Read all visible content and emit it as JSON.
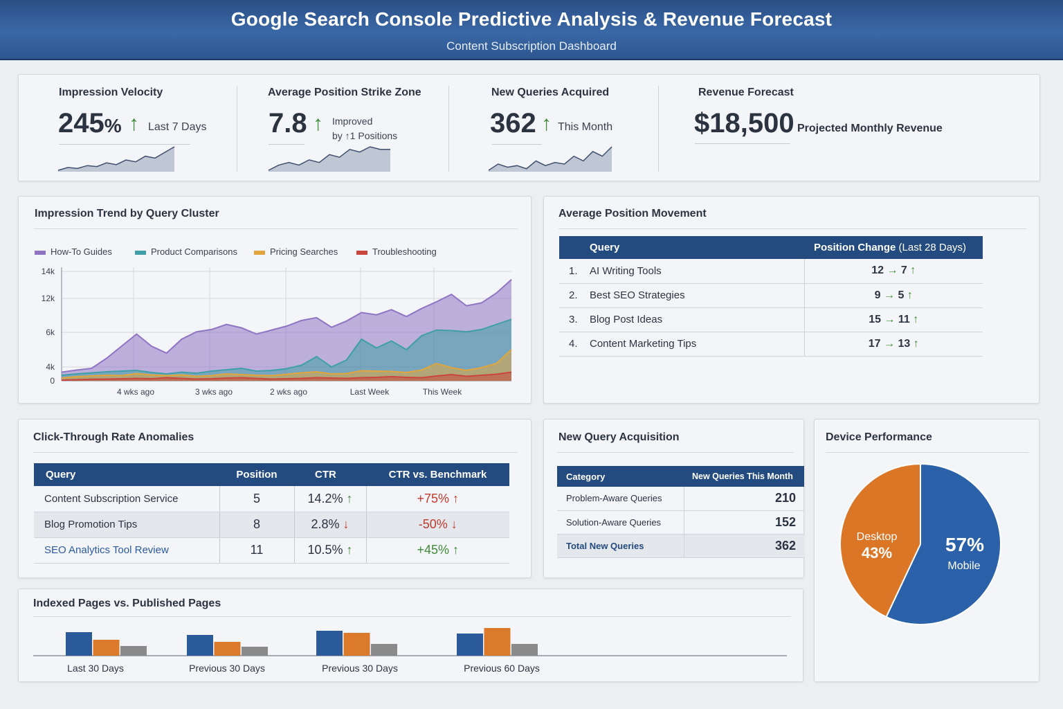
{
  "header": {
    "title": "Google Search Console Predictive Analysis & Revenue Forecast",
    "subtitle": "Content Subscription Dashboard"
  },
  "kpis": {
    "impression_velocity": {
      "label": "Impression Velocity",
      "value": "245",
      "unit": "%",
      "note": "Last 7 Days",
      "spark": [
        3,
        6,
        5,
        8,
        7,
        11,
        9,
        14,
        12,
        18,
        16,
        22,
        28
      ]
    },
    "avg_position": {
      "label": "Average Position Strike Zone",
      "value": "7.8",
      "note_line1": "Improved",
      "note_line2": "by ↑1 Positions",
      "spark": [
        4,
        6,
        7,
        6,
        8,
        7,
        10,
        9,
        12,
        11,
        13,
        12,
        12
      ]
    },
    "new_queries": {
      "label": "New Queries Acquired",
      "value": "362",
      "note": "This Month",
      "spark": [
        3,
        7,
        5,
        6,
        4,
        9,
        6,
        8,
        7,
        12,
        9,
        15,
        12,
        18
      ]
    },
    "revenue": {
      "label": "Revenue Forecast",
      "value": "$18,500",
      "note": "Projected Monthly Revenue"
    }
  },
  "impression_trend": {
    "title": "Impression Trend by Query Cluster",
    "legend": [
      {
        "name": "How-To Guides",
        "color": "#8f74c4"
      },
      {
        "name": "Product Comparisons",
        "color": "#3f9fa6"
      },
      {
        "name": "Pricing Searches",
        "color": "#e0a53c"
      },
      {
        "name": "Troubleshooting",
        "color": "#c9453d"
      }
    ]
  },
  "chart_data": {
    "type": "area",
    "title": "Impression Trend by Query Cluster",
    "x": [
      0,
      1,
      2,
      3,
      4,
      5,
      6,
      7,
      8,
      9,
      10,
      11,
      12,
      13,
      14,
      15,
      16,
      17,
      18,
      19,
      20,
      21,
      22,
      23,
      24,
      25,
      26,
      27,
      28,
      29,
      30
    ],
    "x_tick_labels": [
      "4 wks ago",
      "3 wks ago",
      "2 wks ago",
      "Last Week",
      "This Week"
    ],
    "y_tick_labels": [
      "0",
      "4k",
      "6k",
      "12k",
      "14k"
    ],
    "ylim": [
      0,
      14000
    ],
    "grid": true,
    "legend_position": "top-left",
    "series": [
      {
        "name": "Troubleshooting",
        "color": "#c9453d",
        "values": [
          200,
          300,
          450,
          500,
          600,
          700,
          600,
          900,
          700,
          500,
          600,
          800,
          900,
          700,
          500,
          600,
          700,
          900,
          800,
          700,
          900,
          1000,
          1200,
          1000,
          900,
          1400,
          1800,
          1300,
          1600,
          1900,
          2500
        ]
      },
      {
        "name": "Pricing Searches",
        "color": "#e0a53c",
        "values": [
          800,
          1200,
          1400,
          1600,
          1500,
          2100,
          1700,
          1500,
          1700,
          1300,
          1500,
          2000,
          1800,
          1600,
          1500,
          1900,
          2300,
          2600,
          2000,
          2100,
          2900,
          2800,
          2700,
          2400,
          3100,
          4200,
          3800,
          3000,
          3800,
          4200,
          5000
        ]
      },
      {
        "name": "Product Comparisons",
        "color": "#3f9fa6",
        "values": [
          1600,
          2000,
          2300,
          2600,
          2800,
          3000,
          2400,
          2000,
          2500,
          2200,
          2800,
          3200,
          3600,
          2800,
          3000,
          3500,
          4100,
          4600,
          4000,
          4400,
          5600,
          5100,
          5500,
          5000,
          5800,
          6400,
          6300,
          6100,
          6500,
          7400,
          8300
        ]
      },
      {
        "name": "How-To Guides",
        "color": "#8f74c4",
        "values": [
          2500,
          3100,
          3600,
          4500,
          5200,
          5900,
          5200,
          4800,
          5600,
          6100,
          6500,
          7400,
          6800,
          5900,
          6400,
          7100,
          8100,
          8600,
          6900,
          8000,
          9500,
          9100,
          10000,
          8800,
          10200,
          11400,
          12300,
          10700,
          11200,
          12400,
          13400
        ]
      }
    ]
  },
  "position_movement": {
    "title": "Average Position Movement",
    "col_query": "Query",
    "col_change": "Position Change",
    "col_change_sub": "(Last 28 Days)",
    "rows": [
      {
        "idx": "1.",
        "query": "AI Writing Tools",
        "from": "12",
        "to": "7"
      },
      {
        "idx": "2.",
        "query": "Best SEO Strategies",
        "from": "9",
        "to": "5"
      },
      {
        "idx": "3.",
        "query": "Blog Post Ideas",
        "from": "15",
        "to": "11"
      },
      {
        "idx": "4.",
        "query": "Content Marketing Tips",
        "from": "17",
        "to": "13"
      }
    ]
  },
  "ctr": {
    "title": "Click-Through Rate Anomalies",
    "columns": [
      "Query",
      "Position",
      "CTR",
      "CTR vs. Benchmark"
    ],
    "rows": [
      {
        "query": "Content Subscription Service",
        "position": "5",
        "ctr": "14.2%",
        "ctr_dir": "up",
        "bench": "+75%",
        "bench_dir": "up"
      },
      {
        "query": "Blog Promotion Tips",
        "position": "8",
        "ctr": "2.8%",
        "ctr_dir": "down",
        "bench": "-50%",
        "bench_dir": "down"
      },
      {
        "query": "SEO Analytics Tool Review",
        "position": "11",
        "ctr": "10.5%",
        "ctr_dir": "up",
        "bench": "+45%",
        "bench_dir": "up"
      }
    ]
  },
  "new_query_acq": {
    "title": "New Query Acquisition",
    "col_category": "Category",
    "col_count": "New Queries This Month",
    "rows": [
      {
        "category": "Problem-Aware Queries",
        "count": "210"
      },
      {
        "category": "Solution-Aware Queries",
        "count": "152"
      }
    ],
    "total_label": "Total New Queries",
    "total_value": "362"
  },
  "device": {
    "title": "Device Performance",
    "desktop_label": "Desktop",
    "desktop_pct": "43%",
    "mobile_pct": "57%",
    "mobile_label": "Mobile",
    "desktop_share": 43,
    "mobile_share": 57,
    "desktop_color": "#dc7627",
    "mobile_color": "#2b61a8"
  },
  "indexed": {
    "title": "Indexed Pages vs. Published Pages",
    "groups": [
      {
        "label": "Last 30 Days",
        "values": [
          34,
          23,
          14
        ]
      },
      {
        "label": "Previous 30 Days",
        "values": [
          30,
          20,
          13
        ]
      },
      {
        "label": "Previous 30 Days",
        "values": [
          36,
          33,
          17
        ]
      },
      {
        "label": "Previous 60 Days",
        "values": [
          32,
          40,
          17
        ]
      }
    ],
    "colors": [
      "#2b5a9b",
      "#dc7a2c",
      "#8a8a8a"
    ]
  }
}
